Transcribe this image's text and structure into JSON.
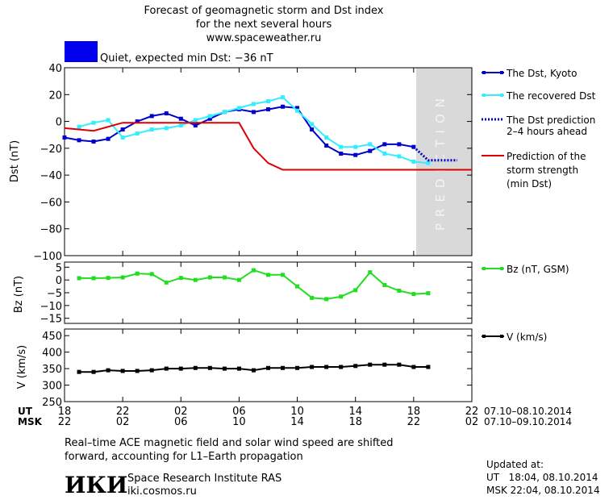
{
  "header": {
    "title_lines": [
      "Forecast of geomagnetic storm and Dst index",
      "for the next several hours",
      "www.spaceweather.ru"
    ],
    "status_text": "Quiet, expected min Dst: −36 nT",
    "status_color": "#0000ee"
  },
  "legends": {
    "dst_kyoto": "The Dst, Kyoto",
    "recovered": "The recovered Dst",
    "prediction_lines": [
      "The Dst prediction",
      "2–4 hours ahead"
    ],
    "strength_lines": [
      "Prediction of the",
      "storm strength",
      "(min Dst)"
    ],
    "bz": "Bz (nT, GSM)",
    "v": "V (km/s)"
  },
  "prediction_label": "PREDICTION",
  "time_axis": {
    "ut_label": "UT",
    "msk_label": "MSK",
    "ut_ticks": [
      "18",
      "22",
      "02",
      "06",
      "10",
      "14",
      "18",
      "22"
    ],
    "msk_ticks": [
      "22",
      "02",
      "06",
      "10",
      "14",
      "18",
      "22",
      "02"
    ],
    "ut_dates": "07.10–08.10.2014",
    "msk_dates": "07.10–09.10.2014"
  },
  "footer": {
    "note_lines": [
      "Real–time ACE magnetic field and solar wind speed are shifted",
      "forward, accounting for L1–Earth propagation"
    ],
    "logo": "ИКИ",
    "institute": "Space Research Institute RAS",
    "site": "iki.cosmos.ru",
    "updated_label": "Updated at:",
    "updated_ut": "UT   18:04, 08.10.2014",
    "updated_msk": "MSK 22:04, 08.10.2014"
  },
  "colors": {
    "dst": "#0000cc",
    "recovered": "#33eeff",
    "strength": "#dd0000",
    "bz": "#22dd22",
    "v": "#000000",
    "prediction_band": "#d9d9d9"
  },
  "chart_data": [
    {
      "type": "line",
      "ylabel": "Dst (nT)",
      "x_unit": "hours since 18 UT 07.10.2014",
      "xlim": [
        0,
        28
      ],
      "ylim": [
        -100,
        40
      ],
      "yticks": [
        40,
        20,
        0,
        -20,
        -40,
        -60,
        -80,
        -100
      ],
      "prediction_start": 24,
      "series": [
        {
          "name": "The Dst, Kyoto",
          "x": [
            0,
            1,
            2,
            3,
            4,
            5,
            6,
            7,
            8,
            9,
            10,
            11,
            12,
            13,
            14,
            15,
            16,
            17,
            18,
            19,
            20,
            21,
            22,
            23,
            24
          ],
          "y": [
            -12,
            -14,
            -15,
            -13,
            -6,
            0,
            4,
            6,
            2,
            -3,
            2,
            7,
            9,
            7,
            9,
            11,
            10,
            -6,
            -18,
            -24,
            -25,
            -22,
            -17,
            -17,
            -19
          ]
        },
        {
          "name": "The recovered Dst",
          "x": [
            1,
            2,
            3,
            4,
            5,
            6,
            7,
            8,
            9,
            10,
            11,
            12,
            13,
            14,
            15,
            16,
            17,
            18,
            19,
            20,
            21,
            22,
            23,
            24,
            25
          ],
          "y": [
            -4,
            -1,
            1,
            -12,
            -9,
            -6,
            -5,
            -3,
            1,
            4,
            7,
            10,
            13,
            15,
            18,
            8,
            -2,
            -12,
            -19,
            -19,
            -17,
            -24,
            -26,
            -30,
            -31
          ]
        },
        {
          "name": "The Dst prediction 2–4 hours ahead",
          "x": [
            24,
            25,
            26,
            27
          ],
          "y": [
            -19,
            -29,
            -29,
            -29
          ]
        },
        {
          "name": "Prediction of the storm strength (min Dst)",
          "x": [
            0,
            2,
            4,
            12,
            13,
            14,
            15,
            28
          ],
          "y": [
            -5,
            -7,
            -1,
            -1,
            -20,
            -31,
            -36,
            -36
          ]
        }
      ]
    },
    {
      "type": "line",
      "ylabel": "Bz (nT)",
      "xlim": [
        0,
        28
      ],
      "ylim": [
        -17,
        7
      ],
      "yticks": [
        5,
        0,
        -5,
        -10,
        -15
      ],
      "series": [
        {
          "name": "Bz (nT, GSM)",
          "x": [
            1,
            2,
            3,
            4,
            5,
            6,
            7,
            8,
            9,
            10,
            11,
            12,
            13,
            14,
            15,
            16,
            17,
            18,
            19,
            20,
            21,
            22,
            23,
            24,
            25
          ],
          "y": [
            0.7,
            0.7,
            0.8,
            1.0,
            2.5,
            2.3,
            -1.0,
            0.8,
            0,
            1.0,
            1.0,
            0,
            3.8,
            2.0,
            2.0,
            -2.5,
            -7,
            -7.5,
            -6.5,
            -4,
            3,
            -2,
            -4.2,
            -5.5,
            -5.2
          ]
        }
      ]
    },
    {
      "type": "line",
      "ylabel": "V (km/s)",
      "xlim": [
        0,
        28
      ],
      "ylim": [
        250,
        470
      ],
      "yticks": [
        450,
        400,
        350,
        300,
        250
      ],
      "series": [
        {
          "name": "V (km/s)",
          "x": [
            1,
            2,
            3,
            4,
            5,
            6,
            7,
            8,
            9,
            10,
            11,
            12,
            13,
            14,
            15,
            16,
            17,
            18,
            19,
            20,
            21,
            22,
            23,
            24,
            25
          ],
          "y": [
            340,
            340,
            345,
            343,
            343,
            345,
            350,
            350,
            352,
            352,
            350,
            350,
            345,
            352,
            352,
            352,
            355,
            355,
            355,
            358,
            362,
            362,
            362,
            355,
            355
          ]
        }
      ]
    }
  ]
}
